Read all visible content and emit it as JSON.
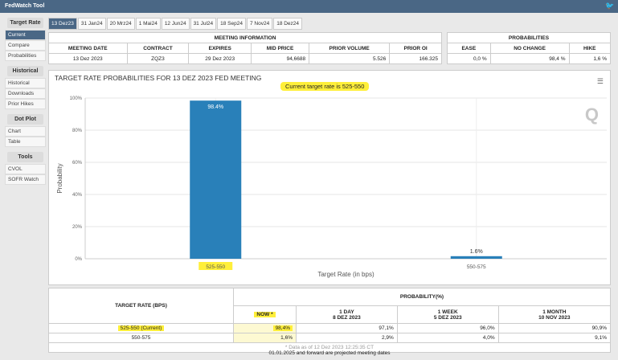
{
  "app": {
    "title": "FedWatch Tool",
    "twitter_icon": "twitter-icon"
  },
  "sidebar": {
    "sections": [
      {
        "header": "Target Rate",
        "items": [
          "Current",
          "Compare",
          "Probabilities"
        ]
      },
      {
        "header": "Historical",
        "items": [
          "Historical",
          "Downloads",
          "Prior Hikes"
        ]
      },
      {
        "header": "Dot Plot",
        "items": [
          "Chart",
          "Table"
        ]
      },
      {
        "header": "Tools",
        "items": [
          "CVOL",
          "SOFR Watch"
        ]
      }
    ],
    "active": "Current"
  },
  "tabs": [
    "13 Dez23",
    "31 Jan24",
    "20 Mrz24",
    "1 Mai24",
    "12 Jun24",
    "31 Jul24",
    "18 Sep24",
    "7 Nov24",
    "18 Dez24"
  ],
  "meeting_info": {
    "title": "MEETING INFORMATION",
    "headers": [
      "MEETING DATE",
      "CONTRACT",
      "EXPIRES",
      "MID PRICE",
      "PRIOR VOLUME",
      "PRIOR OI"
    ],
    "values": [
      "13 Dez 2023",
      "ZQZ3",
      "29 Dez 2023",
      "94,6688",
      "5.526",
      "166.325"
    ]
  },
  "probabilities": {
    "title": "PROBABILITIES",
    "headers": [
      "EASE",
      "NO CHANGE",
      "HIKE"
    ],
    "values": [
      "0,0 %",
      "98,4 %",
      "1,6 %"
    ]
  },
  "chart_data": {
    "type": "bar",
    "title": "TARGET RATE PROBABILITIES FOR 13 DEZ 2023 FED MEETING",
    "subtitle": "Current target rate is 525-550",
    "xlabel": "Target Rate (in bps)",
    "ylabel": "Probability",
    "categories": [
      "525-550",
      "550-575"
    ],
    "values": [
      98.4,
      1.6
    ],
    "data_labels": [
      "98.4%",
      "1.6%"
    ],
    "ylim": [
      0,
      100
    ],
    "yticks": [
      "0%",
      "20%",
      "40%",
      "60%",
      "80%",
      "100%"
    ],
    "color": "#2980b9",
    "highlight_category": "525-550",
    "grid": true
  },
  "bottom_table": {
    "col1": "TARGET RATE (BPS)",
    "prob_header": "PROBABILITY(%)",
    "cols": [
      {
        "l1": "NOW *",
        "l2": ""
      },
      {
        "l1": "1 DAY",
        "l2": "8 DEZ 2023"
      },
      {
        "l1": "1 WEEK",
        "l2": "5 DEZ 2023"
      },
      {
        "l1": "1 MONTH",
        "l2": "10 NOV 2023"
      }
    ],
    "rows": [
      {
        "rate": "525-550 (Current)",
        "vals": [
          "98,4%",
          "97,1%",
          "96,0%",
          "90,9%"
        ]
      },
      {
        "rate": "550-575",
        "vals": [
          "1,6%",
          "2,9%",
          "4,0%",
          "9,1%"
        ]
      }
    ],
    "note": "* Data as of 12 Dez 2023 12:25:35 CT"
  },
  "footer": "01.01.2025 and forward are projected meeting dates"
}
